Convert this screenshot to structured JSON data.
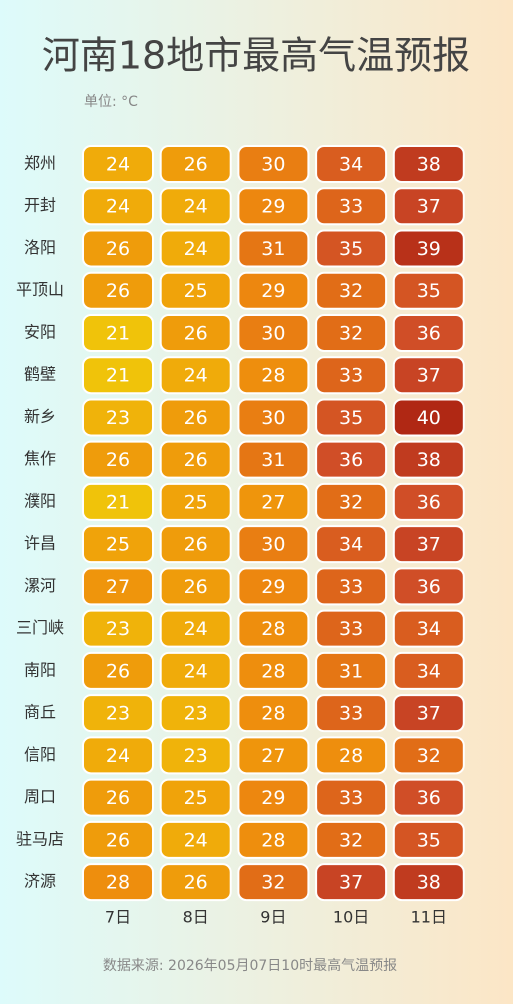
{
  "chart_data": {
    "type": "heatmap",
    "title": "河南18地市最高气温预报",
    "unit_label": "单位: °C",
    "source": "数据来源: 2026年05月07日10时最高气温预报",
    "x": [
      "7日",
      "8日",
      "9日",
      "10日",
      "11日"
    ],
    "y": [
      "郑州",
      "开封",
      "洛阳",
      "平顶山",
      "安阳",
      "鹤壁",
      "新乡",
      "焦作",
      "濮阳",
      "许昌",
      "漯河",
      "三门峡",
      "南阳",
      "商丘",
      "信阳",
      "周口",
      "驻马店",
      "济源"
    ],
    "values": [
      [
        24,
        26,
        30,
        34,
        38
      ],
      [
        24,
        24,
        29,
        33,
        37
      ],
      [
        26,
        24,
        31,
        35,
        39
      ],
      [
        26,
        25,
        29,
        32,
        35
      ],
      [
        21,
        26,
        30,
        32,
        36
      ],
      [
        21,
        24,
        28,
        33,
        37
      ],
      [
        23,
        26,
        30,
        35,
        40
      ],
      [
        26,
        26,
        31,
        36,
        38
      ],
      [
        21,
        25,
        27,
        32,
        36
      ],
      [
        25,
        26,
        30,
        34,
        37
      ],
      [
        27,
        26,
        29,
        33,
        36
      ],
      [
        23,
        24,
        28,
        33,
        34
      ],
      [
        26,
        24,
        28,
        31,
        34
      ],
      [
        23,
        23,
        28,
        33,
        37
      ],
      [
        24,
        23,
        27,
        28,
        32
      ],
      [
        26,
        25,
        29,
        33,
        36
      ],
      [
        26,
        24,
        28,
        32,
        35
      ],
      [
        28,
        26,
        32,
        37,
        38
      ]
    ],
    "colorscale": [
      "#f0c30a",
      "#f0a40a",
      "#ee8a0e",
      "#e06a18",
      "#cf4c28",
      "#b02814"
    ]
  }
}
